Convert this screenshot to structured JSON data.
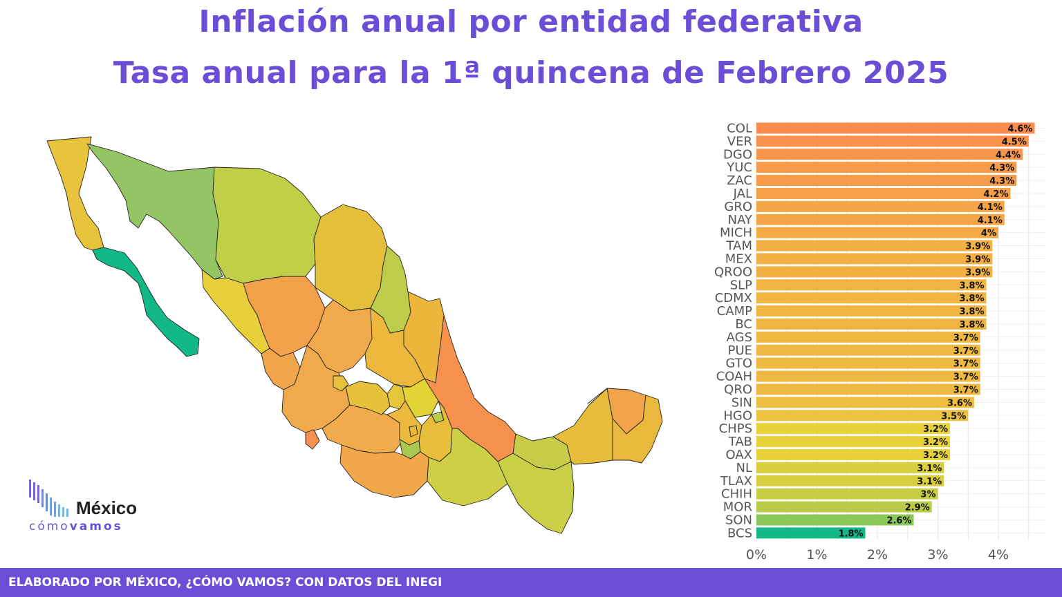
{
  "title_line1": "Inflación anual por entidad federativa",
  "title_line2": "Tasa anual para la 1ª quincena de Febrero 2025",
  "logo": {
    "name": "México",
    "sub_light": "cómo",
    "sub_bold": "vamos"
  },
  "footer": "ELABORADO POR MÉXICO, ¿CÓMO VAMOS? CON DATOS DEL INEGI",
  "chart_data": {
    "type": "bar",
    "orientation": "horizontal",
    "categories": [
      "COL",
      "VER",
      "DGO",
      "YUC",
      "ZAC",
      "JAL",
      "GRO",
      "NAY",
      "MICH",
      "TAM",
      "MEX",
      "QROO",
      "SLP",
      "CDMX",
      "CAMP",
      "BC",
      "AGS",
      "PUE",
      "GTO",
      "COAH",
      "QRO",
      "SIN",
      "HGO",
      "CHPS",
      "TAB",
      "OAX",
      "NL",
      "TLAX",
      "CHIH",
      "MOR",
      "SON",
      "BCS"
    ],
    "values": [
      4.6,
      4.5,
      4.4,
      4.3,
      4.3,
      4.2,
      4.1,
      4.1,
      4.0,
      3.9,
      3.9,
      3.9,
      3.8,
      3.8,
      3.8,
      3.8,
      3.7,
      3.7,
      3.7,
      3.7,
      3.7,
      3.6,
      3.5,
      3.2,
      3.2,
      3.2,
      3.1,
      3.1,
      3.0,
      2.9,
      2.6,
      1.8
    ],
    "labels": [
      "4.6%",
      "4.5%",
      "4.4%",
      "4.3%",
      "4.3%",
      "4.2%",
      "4.1%",
      "4.1%",
      "4%",
      "3.9%",
      "3.9%",
      "3.9%",
      "3.8%",
      "3.8%",
      "3.8%",
      "3.8%",
      "3.7%",
      "3.7%",
      "3.7%",
      "3.7%",
      "3.7%",
      "3.6%",
      "3.5%",
      "3.2%",
      "3.2%",
      "3.2%",
      "3.1%",
      "3.1%",
      "3%",
      "2.9%",
      "2.6%",
      "1.8%"
    ],
    "xticks": [
      "0%",
      "1%",
      "2%",
      "3%",
      "4%"
    ],
    "xlim": [
      0,
      4.8
    ],
    "grid": true,
    "color_scale": {
      "low": "#12b886",
      "mid": "#e8d23a",
      "high": "#fb8c4e"
    }
  },
  "map_colors": {
    "BC": "#e8c33c",
    "BCS": "#12b886",
    "SON": "#93c565",
    "CHIH": "#bfcf48",
    "COAH": "#e3bf3a",
    "NL": "#bdcc4a",
    "TAM": "#ecb53c",
    "SIN": "#e8cf3c",
    "DGO": "#f3a04a",
    "ZAC": "#f0a94c",
    "NAY": "#f0a44b",
    "JAL": "#f0a94c",
    "COL": "#f59052",
    "MICH": "#f1aa4c",
    "GRO": "#f0a84b",
    "VER": "#f6904d",
    "OAX": "#cdd046",
    "CHPS": "#c9cf47",
    "TAB": "#c5cd48",
    "CAMP": "#e6bd3a",
    "YUC": "#f2a44b",
    "QROO": "#eab83c",
    "SLP": "#ebb73c",
    "AGS": "#e8c23a",
    "GTO": "#e6c23a",
    "QRO": "#e6c63a",
    "HGO": "#e2d436",
    "MEX": "#ecb93c",
    "CDMX": "#e8b93c",
    "MOR": "#a8c84f",
    "TLAX": "#b9cc4a",
    "PUE": "#e7be3b"
  }
}
